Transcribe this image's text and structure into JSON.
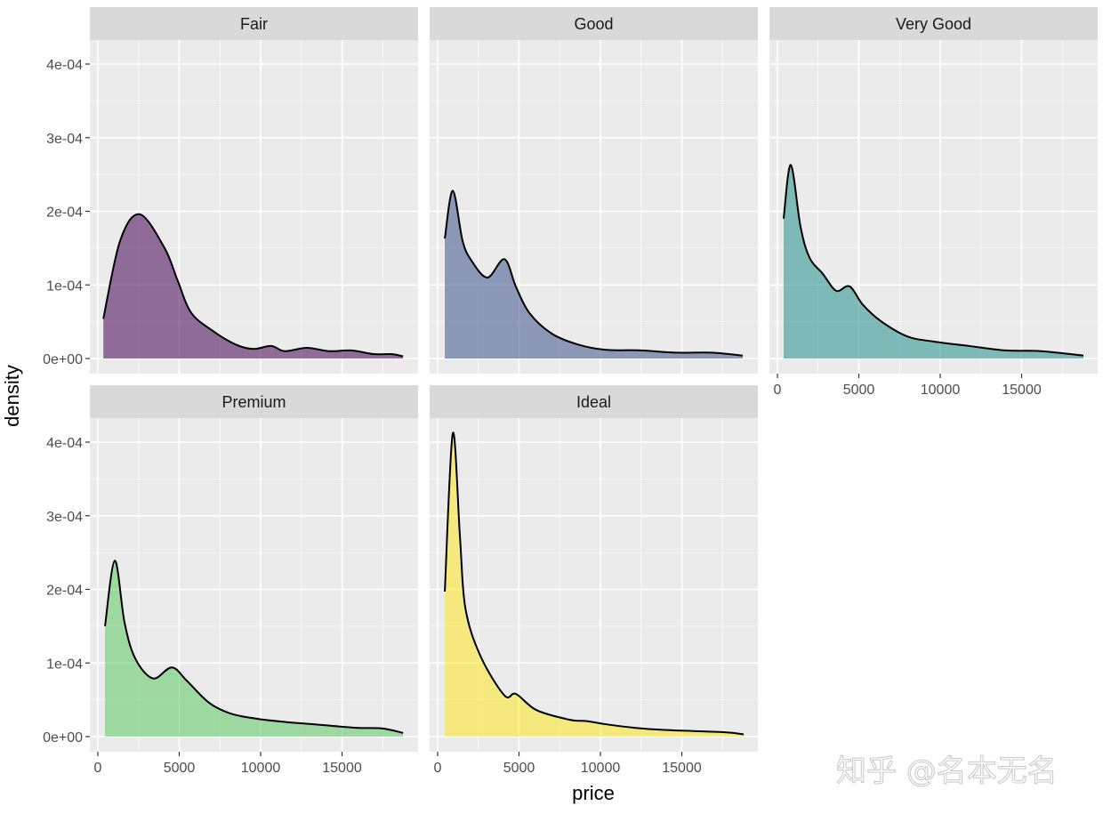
{
  "chart_data": {
    "type": "area",
    "subtype": "faceted density",
    "xlabel": "price",
    "ylabel": "density",
    "xlim": [
      0,
      19000
    ],
    "ylim": [
      0,
      0.00042
    ],
    "x_ticks": [
      0,
      5000,
      10000,
      15000
    ],
    "x_tick_labels": [
      "0",
      "5000",
      "10000",
      "15000"
    ],
    "y_ticks": [
      0,
      0.0001,
      0.0002,
      0.0003,
      0.0004
    ],
    "y_tick_labels": [
      "0e+00",
      "1e-04",
      "2e-04",
      "3e-04",
      "4e-04"
    ],
    "grid": true,
    "panel_background": "#EBEBEB",
    "strip_background": "#D9D9D9",
    "fill_opacity": 0.55,
    "facets": [
      {
        "label": "Fair",
        "color": "#440154",
        "x": [
          337,
          1370,
          2570,
          4100,
          4900,
          5740,
          7100,
          8470,
          9560,
          10650,
          11480,
          12840,
          14200,
          15570,
          16940,
          18030,
          18750
        ],
        "y": [
          5.4e-05,
          0.00016,
          0.000196,
          0.00015,
          0.000106,
          6.2e-05,
          3.7e-05,
          1.9e-05,
          1.3e-05,
          1.7e-05,
          1e-05,
          1.45e-05,
          1e-05,
          1.1e-05,
          6e-06,
          6e-06,
          3e-06
        ]
      },
      {
        "label": "Good",
        "color": "#3B528B",
        "x": [
          440,
          930,
          1530,
          2080,
          3060,
          4100,
          4800,
          5630,
          7000,
          8630,
          10270,
          12460,
          14640,
          16830,
          18740
        ],
        "y": [
          0.000163,
          0.000228,
          0.00016,
          0.000133,
          0.00011,
          0.000135,
          9.8e-05,
          6.2e-05,
          3.4e-05,
          1.9e-05,
          1.2e-05,
          1.1e-05,
          8e-06,
          8e-06,
          4e-06
        ]
      },
      {
        "label": "Very Good",
        "color": "#21908C",
        "x": [
          380,
          820,
          1420,
          1970,
          2790,
          3610,
          4430,
          5250,
          6340,
          7980,
          9620,
          11800,
          14000,
          16200,
          18800
        ],
        "y": [
          0.00019,
          0.000263,
          0.000179,
          0.000137,
          0.000115,
          9.2e-05,
          9.8e-05,
          7.3e-05,
          5.1e-05,
          3e-05,
          2.3e-05,
          1.7e-05,
          1.1e-05,
          1e-05,
          4e-06
        ]
      },
      {
        "label": "Premium",
        "color": "#5DC863",
        "x": [
          440,
          1040,
          1640,
          2300,
          3390,
          4540,
          5460,
          6830,
          8200,
          9840,
          11480,
          13110,
          15850,
          17490,
          18750
        ],
        "y": [
          0.00015,
          0.000239,
          0.000155,
          0.000106,
          7.9e-05,
          9.4e-05,
          7.6e-05,
          4.6e-05,
          3.1e-05,
          2.4e-05,
          2e-05,
          1.7e-05,
          1.2e-05,
          1.1e-05,
          5e-06
        ]
      },
      {
        "label": "Ideal",
        "color": "#FDE725",
        "x": [
          440,
          930,
          1370,
          1700,
          2620,
          4100,
          4810,
          6070,
          8090,
          9180,
          10270,
          12080,
          13930,
          17540,
          18800
        ],
        "y": [
          0.000197,
          0.000412,
          0.000272,
          0.000175,
          0.00011,
          5.6e-05,
          5.8e-05,
          3.6e-05,
          2.3e-05,
          2.1e-05,
          1.7e-05,
          1.2e-05,
          9e-06,
          6e-06,
          3e-06
        ]
      }
    ]
  },
  "watermark": "知乎 @名本无名"
}
